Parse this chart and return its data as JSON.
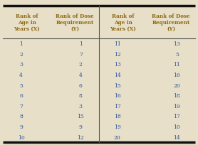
{
  "col_headers": [
    "Rank of\nAge in\nYears (X)",
    "Rank of Dose\nRequirement\n(Y)",
    "Rank of\nAge in\nYears (X)",
    "Rank of Dose\nRequirement\n(Y)"
  ],
  "left_x": [
    1,
    2,
    3,
    4,
    5,
    6,
    7,
    8,
    9,
    10
  ],
  "left_y": [
    1,
    7,
    2,
    4,
    6,
    8,
    3,
    15,
    9,
    12
  ],
  "right_x": [
    11,
    12,
    13,
    14,
    15,
    16,
    17,
    18,
    19,
    20
  ],
  "right_y": [
    13,
    5,
    11,
    16,
    20,
    18,
    19,
    17,
    10,
    14
  ],
  "header_color": "#8B6914",
  "text_color": "#2855a0",
  "bg_color": "#e8dfc8",
  "border_color": "#111111",
  "divider_color": "#555555"
}
